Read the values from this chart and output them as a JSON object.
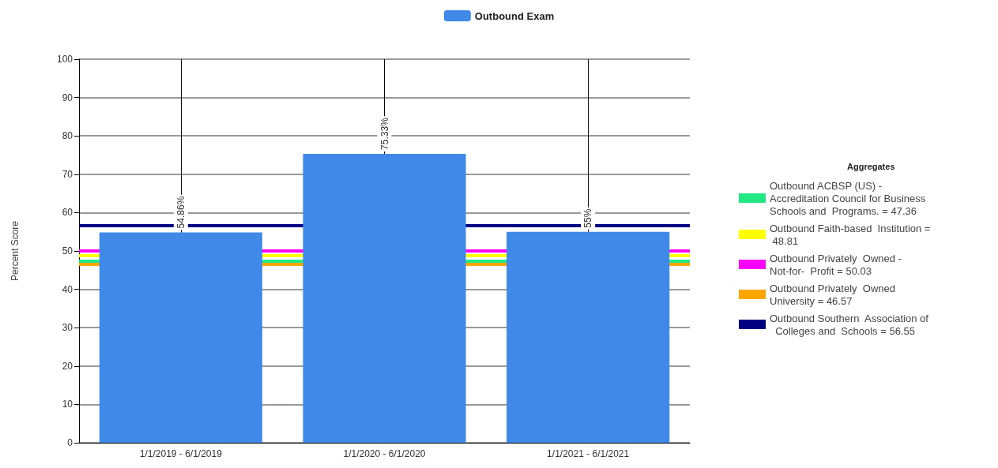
{
  "chart_data": {
    "type": "bar",
    "ylabel": "Percent Score",
    "legend": "top",
    "legend_title": "Aggregates",
    "grid": true,
    "categories": [
      "1/1/2019 - 6/1/2019",
      "1/1/2020 - 6/1/2020",
      "1/1/2021 - 6/1/2021"
    ],
    "series": [
      {
        "name": "Outbound Exam",
        "color": "#4189e8",
        "values": [
          54.86,
          75.33,
          55
        ],
        "value_labels": [
          "54.86%",
          "75.33%",
          "55%"
        ]
      }
    ],
    "ylim": [
      0,
      100
    ],
    "yticks": [
      0,
      10,
      20,
      30,
      40,
      50,
      60,
      70,
      80,
      90,
      100
    ],
    "ref_lines": [
      {
        "axis": "y",
        "value": 47.36,
        "label": "Outbound ACBSP (US) -  Accreditation Council for Business  Schools and  Programs. = 47.36",
        "color": "#22e884"
      },
      {
        "axis": "y",
        "value": 48.81,
        "label": "Outbound Faith-based  Institution = 48.81",
        "color": "#ffff00"
      },
      {
        "axis": "y",
        "value": 50.03,
        "label": "Outbound Privately  Owned -  Not-for-  Profit = 50.03",
        "color": "#ff00ff"
      },
      {
        "axis": "y",
        "value": 46.57,
        "label": "Outbound Privately  Owned University = 46.57",
        "color": "#ffa500"
      },
      {
        "axis": "y",
        "value": 56.55,
        "label": "Outbound Southern  Association of  Colleges and  Schools = 56.55",
        "color": "#000080"
      }
    ]
  }
}
